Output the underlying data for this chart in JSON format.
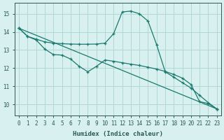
{
  "xlabel": "Humidex (Indice chaleur)",
  "bg_color": "#d8f0ef",
  "grid_color": "#b0d8d4",
  "line_color": "#1a7a6e",
  "xlim": [
    -0.5,
    23.5
  ],
  "ylim": [
    9.4,
    15.6
  ],
  "yticks": [
    10,
    11,
    12,
    13,
    14,
    15
  ],
  "xticks": [
    0,
    1,
    2,
    3,
    4,
    5,
    6,
    7,
    8,
    9,
    10,
    11,
    12,
    13,
    14,
    15,
    16,
    17,
    18,
    19,
    20,
    21,
    22,
    23
  ],
  "series": [
    {
      "x": [
        0,
        1,
        2,
        3,
        4,
        5,
        6,
        7,
        8,
        9,
        10,
        11,
        12,
        13,
        14,
        15,
        16,
        17,
        18,
        19,
        20,
        21,
        22,
        23
      ],
      "y": [
        14.2,
        13.75,
        13.6,
        13.45,
        13.38,
        13.35,
        13.33,
        13.32,
        13.32,
        13.33,
        13.38,
        13.9,
        15.1,
        15.15,
        15.0,
        14.6,
        13.3,
        11.8,
        11.5,
        11.2,
        10.9,
        10.5,
        10.1,
        9.75
      ]
    },
    {
      "x": [
        0,
        1,
        2,
        3,
        4,
        5,
        6,
        7,
        8,
        9,
        10,
        11,
        12,
        13,
        14,
        15,
        16,
        17,
        18,
        19,
        20,
        21,
        22,
        23
      ],
      "y": [
        14.2,
        13.75,
        13.55,
        13.05,
        12.75,
        12.72,
        12.5,
        12.1,
        11.8,
        12.1,
        12.45,
        12.38,
        12.3,
        12.22,
        12.15,
        12.05,
        11.95,
        11.82,
        11.65,
        11.45,
        11.1,
        10.15,
        10.05,
        9.75
      ]
    },
    {
      "x": [
        0,
        23
      ],
      "y": [
        14.2,
        9.75
      ]
    }
  ]
}
